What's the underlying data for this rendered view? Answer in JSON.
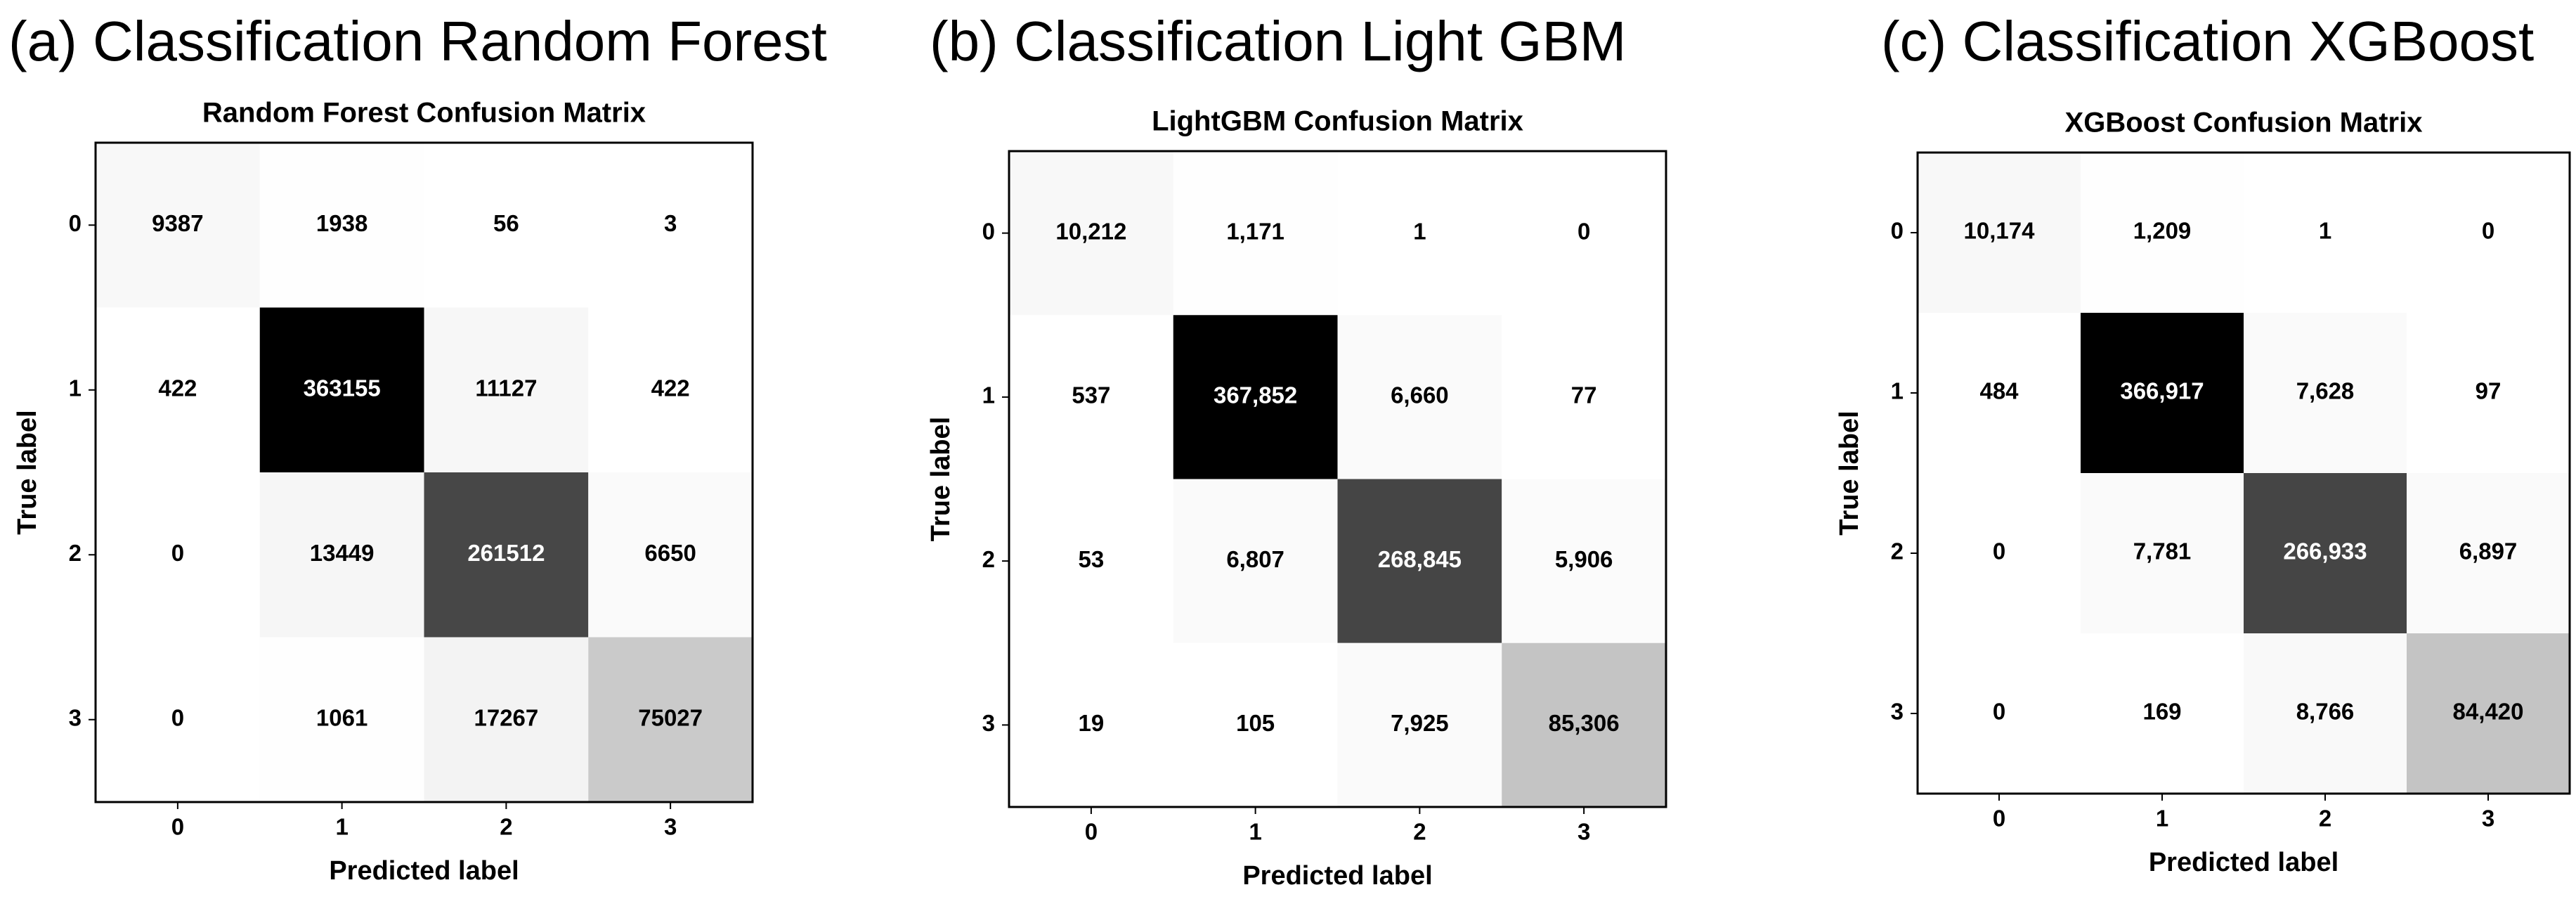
{
  "chart_data": [
    {
      "type": "heatmap",
      "heading": "(a) Classification Random Forest",
      "title": "Random Forest Confusion Matrix",
      "xlabel": "Predicted label",
      "ylabel": "True label",
      "categories": [
        "0",
        "1",
        "2",
        "3"
      ],
      "colormap": "Greys",
      "values": [
        [
          9387,
          1938,
          56,
          3
        ],
        [
          422,
          363155,
          11127,
          422
        ],
        [
          0,
          13449,
          261512,
          6650
        ],
        [
          0,
          1061,
          17267,
          75027
        ]
      ]
    },
    {
      "type": "heatmap",
      "heading": "(b) Classification Light GBM",
      "title": "LightGBM Confusion Matrix",
      "xlabel": "Predicted label",
      "ylabel": "True label",
      "categories": [
        "0",
        "1",
        "2",
        "3"
      ],
      "colormap": "Greys",
      "values": [
        [
          10212,
          1171,
          1,
          0
        ],
        [
          537,
          367852,
          6660,
          77
        ],
        [
          53,
          6807,
          268845,
          5906
        ],
        [
          19,
          105,
          7925,
          85306
        ]
      ],
      "value_labels": [
        [
          "10,212",
          "1,171",
          "1",
          "0"
        ],
        [
          "537",
          "367,852",
          "6,660",
          "77"
        ],
        [
          "53",
          "6,807",
          "268,845",
          "5,906"
        ],
        [
          "19",
          "105",
          "7,925",
          "85,306"
        ]
      ]
    },
    {
      "type": "heatmap",
      "heading": "(c) Classification XGBoost",
      "title": "XGBoost Confusion Matrix",
      "xlabel": "Predicted label",
      "ylabel": "True label",
      "categories": [
        "0",
        "1",
        "2",
        "3"
      ],
      "colormap": "Greys",
      "values": [
        [
          10174,
          1209,
          1,
          0
        ],
        [
          484,
          366917,
          7628,
          97
        ],
        [
          0,
          7781,
          266933,
          6897
        ],
        [
          0,
          169,
          8766,
          84420
        ]
      ],
      "value_labels": [
        [
          "10,174",
          "1,209",
          "1",
          "0"
        ],
        [
          "484",
          "366,917",
          "7,628",
          "97"
        ],
        [
          "0",
          "7,781",
          "266,933",
          "6,897"
        ],
        [
          "0",
          "169",
          "8,766",
          "84,420"
        ]
      ]
    }
  ]
}
